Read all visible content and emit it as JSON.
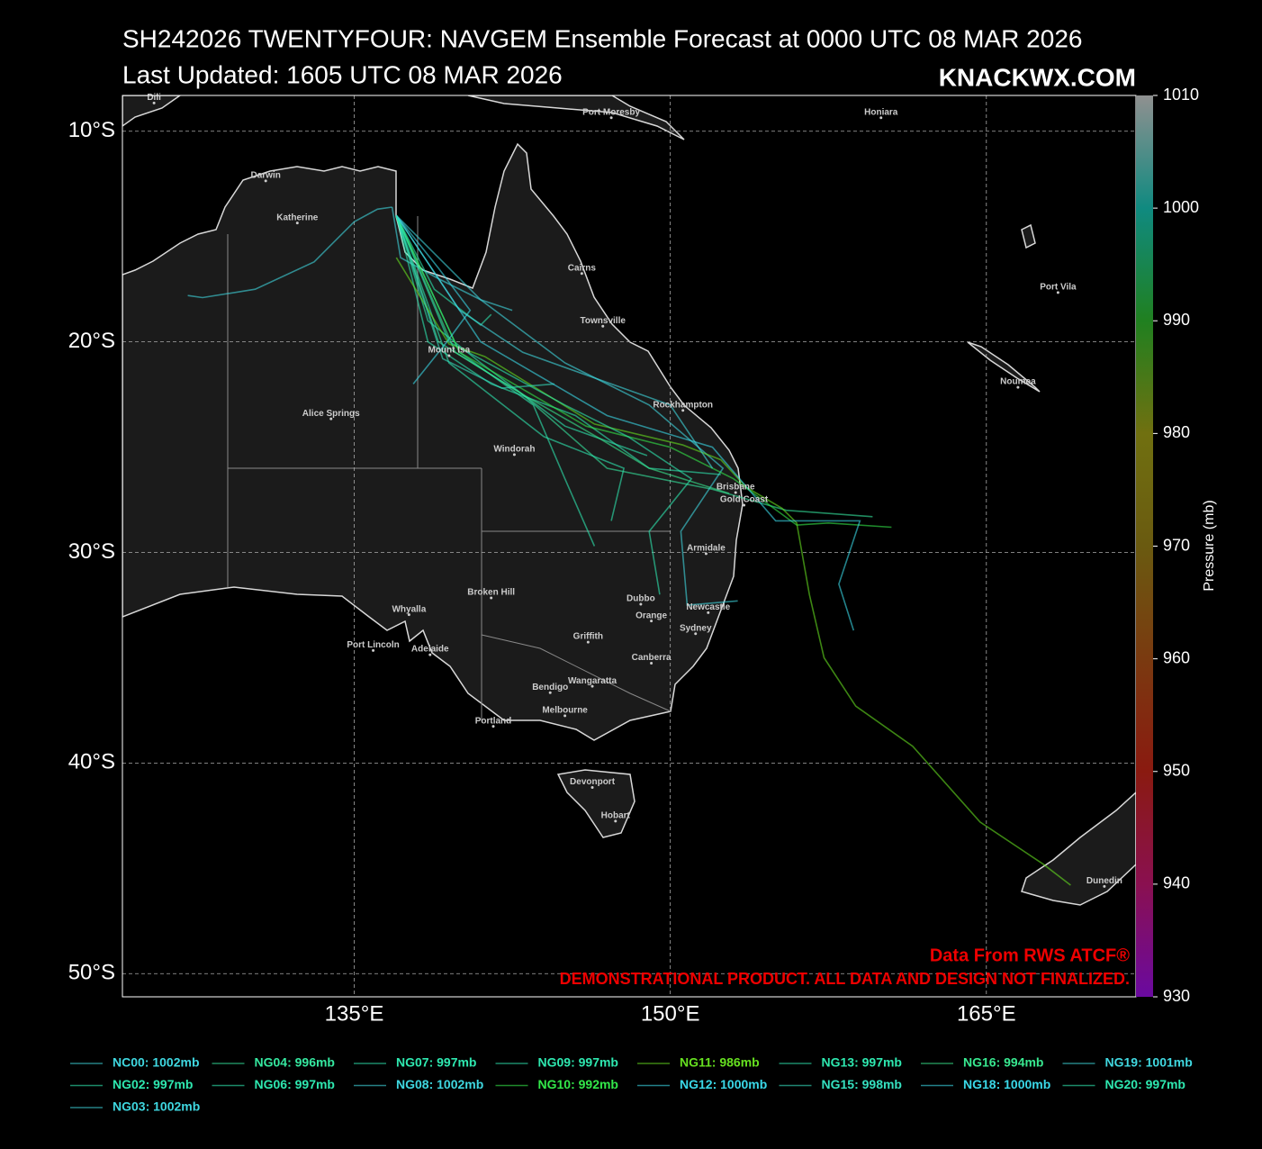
{
  "chart_data": {
    "type": "track-map",
    "title": "SH242026 TWENTYFOUR: NAVGEM Ensemble Forecast at 0000 UTC 08 MAR 2026",
    "subtitle": "Last Updated: 1605 UTC 08 MAR 2026",
    "brand": "KNACKWX.COM",
    "source": "Data From RWS ATCF®",
    "disclaimer": "DEMONSTRATIONAL PRODUCT. ALL DATA AND DESIGN NOT FINALIZED.",
    "xlim": [
      124,
      172.1
    ],
    "ylim": [
      -51.1,
      -8.3
    ],
    "xticks": [
      {
        "value": 135,
        "label": "135°E"
      },
      {
        "value": 150,
        "label": "150°E"
      },
      {
        "value": 165,
        "label": "165°E"
      }
    ],
    "yticks": [
      {
        "value": -10,
        "label": "10°S"
      },
      {
        "value": -20,
        "label": "20°S"
      },
      {
        "value": -30,
        "label": "30°S"
      },
      {
        "value": -40,
        "label": "40°S"
      },
      {
        "value": -50,
        "label": "50°S"
      }
    ],
    "grid": true,
    "colorbar": {
      "label": "Pressure (mb)",
      "lim": [
        930,
        1010
      ],
      "ticks": [
        930,
        940,
        950,
        960,
        970,
        980,
        990,
        1000,
        1010
      ],
      "colors": [
        "#6a0aa0",
        "#8a1050",
        "#8a1a10",
        "#7a3a10",
        "#6a5a10",
        "#707010",
        "#208020",
        "#108a80",
        "#909090"
      ]
    },
    "cities": [
      {
        "name": "Dili",
        "lon": 125.5,
        "lat": -8.4
      },
      {
        "name": "Port Moresby",
        "lon": 147.2,
        "lat": -9.1
      },
      {
        "name": "Honiara",
        "lon": 160.0,
        "lat": -9.1
      },
      {
        "name": "Darwin",
        "lon": 130.8,
        "lat": -12.1
      },
      {
        "name": "Katherine",
        "lon": 132.3,
        "lat": -14.1
      },
      {
        "name": "Cairns",
        "lon": 145.8,
        "lat": -16.5
      },
      {
        "name": "Port Vila",
        "lon": 168.4,
        "lat": -17.4
      },
      {
        "name": "Townsville",
        "lon": 146.8,
        "lat": -19.0
      },
      {
        "name": "Mount Isa",
        "lon": 139.5,
        "lat": -20.4
      },
      {
        "name": "Noumea",
        "lon": 166.5,
        "lat": -21.9
      },
      {
        "name": "Rockhampton",
        "lon": 150.6,
        "lat": -23.0
      },
      {
        "name": "Alice Springs",
        "lon": 133.9,
        "lat": -23.4
      },
      {
        "name": "Windorah",
        "lon": 142.6,
        "lat": -25.1
      },
      {
        "name": "Brisbane",
        "lon": 153.1,
        "lat": -26.9
      },
      {
        "name": "Gold Coast",
        "lon": 153.5,
        "lat": -27.5
      },
      {
        "name": "Armidale",
        "lon": 151.7,
        "lat": -29.8
      },
      {
        "name": "Broken Hill",
        "lon": 141.5,
        "lat": -31.9
      },
      {
        "name": "Dubbo",
        "lon": 148.6,
        "lat": -32.2
      },
      {
        "name": "Newcastle",
        "lon": 151.8,
        "lat": -32.6
      },
      {
        "name": "Whyalla",
        "lon": 137.6,
        "lat": -32.7
      },
      {
        "name": "Orange",
        "lon": 149.1,
        "lat": -33.0
      },
      {
        "name": "Sydney",
        "lon": 151.2,
        "lat": -33.6
      },
      {
        "name": "Griffith",
        "lon": 146.1,
        "lat": -34.0
      },
      {
        "name": "Port Lincoln",
        "lon": 135.9,
        "lat": -34.4
      },
      {
        "name": "Adelaide",
        "lon": 138.6,
        "lat": -34.6
      },
      {
        "name": "Canberra",
        "lon": 149.1,
        "lat": -35.0
      },
      {
        "name": "Wangaratta",
        "lon": 146.3,
        "lat": -36.1
      },
      {
        "name": "Bendigo",
        "lon": 144.3,
        "lat": -36.4
      },
      {
        "name": "Melbourne",
        "lon": 145.0,
        "lat": -37.5
      },
      {
        "name": "Portland",
        "lon": 141.6,
        "lat": -38.0
      },
      {
        "name": "Devonport",
        "lon": 146.3,
        "lat": -40.9
      },
      {
        "name": "Hobart",
        "lon": 147.4,
        "lat": -42.5
      },
      {
        "name": "Dunedin",
        "lon": 170.6,
        "lat": -45.6
      }
    ],
    "series": [
      {
        "name": "NC00: 1002mb",
        "color": "#3fd7e0",
        "lon": [
          127.1,
          127.8,
          130.3,
          133.1,
          135.0,
          136.1,
          136.8
        ],
        "lat": [
          -17.8,
          -17.9,
          -17.5,
          -16.2,
          -14.3,
          -13.7,
          -13.6
        ]
      },
      {
        "name": "NG02: 997mb",
        "color": "#2ee8b0",
        "lon": [
          137.0,
          138.5,
          141.0,
          145.0,
          148.9
        ],
        "lat": [
          -14.0,
          -19.0,
          -21.0,
          -24.0,
          -25.4
        ]
      },
      {
        "name": "NG03: 1002mb",
        "color": "#3fd7e0",
        "lon": [
          136.8,
          137.2,
          139.0,
          141.0,
          142.5
        ],
        "lat": [
          -13.6,
          -16.0,
          -17.0,
          -18.0,
          -18.5
        ]
      },
      {
        "name": "NG04: 996mb",
        "color": "#35e8a0",
        "lon": [
          137.0,
          139.0,
          143.0,
          147.0,
          152.0,
          155.5,
          159.6
        ],
        "lat": [
          -14.0,
          -20.0,
          -22.5,
          -26.0,
          -27.0,
          -28.0,
          -28.3
        ]
      },
      {
        "name": "NG06: 997mb",
        "color": "#2ee8b0",
        "lon": [
          137.0,
          139.5,
          144.0,
          147.8,
          147.2
        ],
        "lat": [
          -14.0,
          -21.0,
          -24.5,
          -26.0,
          -28.5
        ]
      },
      {
        "name": "NG07: 997mb",
        "color": "#2ee8b0",
        "lon": [
          137.0,
          140.0,
          143.5,
          145.0,
          146.4
        ],
        "lat": [
          -14.0,
          -20.5,
          -23.0,
          -26.5,
          -29.7
        ]
      },
      {
        "name": "NG08: 1002mb",
        "color": "#3fd7e0",
        "lon": [
          137.0,
          141.0,
          145.0,
          149.0,
          152.5,
          150.5,
          150.8,
          153.2
        ],
        "lat": [
          -14.0,
          -18.0,
          -21.0,
          -23.0,
          -26.0,
          -29.0,
          -32.5,
          -32.3
        ]
      },
      {
        "name": "NG09: 997mb",
        "color": "#2ee8b0",
        "lon": [
          137.0,
          138.5,
          141.5,
          145.5,
          149.0,
          152.4
        ],
        "lat": [
          -14.0,
          -20.0,
          -22.0,
          -23.5,
          -26.0,
          -26.3
        ]
      },
      {
        "name": "NG10: 992mb",
        "color": "#33e84a",
        "lon": [
          137.0,
          140.0,
          146.0,
          150.0,
          153.0,
          156.0,
          157.5,
          160.5
        ],
        "lat": [
          -14.0,
          -20.5,
          -24.0,
          -25.0,
          -26.5,
          -28.7,
          -28.6,
          -28.8
        ]
      },
      {
        "name": "NG11: 986mb",
        "color": "#66e020",
        "lon": [
          137.0,
          139.5,
          141.2,
          146.4,
          150.6,
          152.4,
          153.6,
          155.3,
          156.0,
          156.6,
          157.3,
          158.8,
          161.5,
          164.7,
          167.7,
          169.0
        ],
        "lat": [
          -16.0,
          -20.1,
          -20.7,
          -23.9,
          -24.9,
          -25.6,
          -26.9,
          -27.9,
          -28.6,
          -32.0,
          -35.0,
          -37.3,
          -39.2,
          -42.8,
          -44.8,
          -45.8
        ]
      },
      {
        "name": "NG12: 1000mb",
        "color": "#3ad8e8",
        "lon": [
          137.0,
          139.0,
          140.5,
          139.4,
          137.8
        ],
        "lat": [
          -14.0,
          -16.5,
          -18.5,
          -20.0,
          -22.0
        ]
      },
      {
        "name": "NG13: 997mb",
        "color": "#2ee8b0",
        "lon": [
          137.0,
          138.8,
          141.0,
          141.5
        ],
        "lat": [
          -14.0,
          -17.5,
          -19.2,
          -18.7
        ]
      },
      {
        "name": "NG15: 998mb",
        "color": "#35e0c0",
        "lon": [
          137.0,
          139.2,
          142.0,
          144.5
        ],
        "lat": [
          -14.0,
          -20.8,
          -22.2,
          -22.0
        ]
      },
      {
        "name": "NG16: 994mb",
        "color": "#38e890",
        "lon": [
          137.0,
          139.8,
          143.0,
          146.5,
          149.0,
          152.8
        ],
        "lat": [
          -14.0,
          -20.5,
          -22.5,
          -24.5,
          -26.0,
          -27.2
        ]
      },
      {
        "name": "NG18: 1000mb",
        "color": "#3ad8e8",
        "lon": [
          137.0,
          141.0,
          147.0,
          152.0,
          155.0,
          159.0,
          158.0,
          158.7
        ],
        "lat": [
          -14.0,
          -20.0,
          -23.5,
          -25.0,
          -28.5,
          -28.5,
          -31.5,
          -33.7
        ]
      },
      {
        "name": "NG19: 1001mb",
        "color": "#40d8e0",
        "lon": [
          137.0,
          140.0,
          143.0,
          150.0,
          152.0
        ],
        "lat": [
          -14.0,
          -18.5,
          -20.5,
          -23.0,
          -26.0
        ]
      },
      {
        "name": "NG20: 997mb",
        "color": "#2ee8b0",
        "lon": [
          137.0,
          139.5,
          145.0,
          148.0,
          151.0,
          149.0,
          149.5
        ],
        "lat": [
          -14.0,
          -20.0,
          -23.0,
          -24.5,
          -26.5,
          -29.0,
          -32.0
        ]
      }
    ]
  }
}
